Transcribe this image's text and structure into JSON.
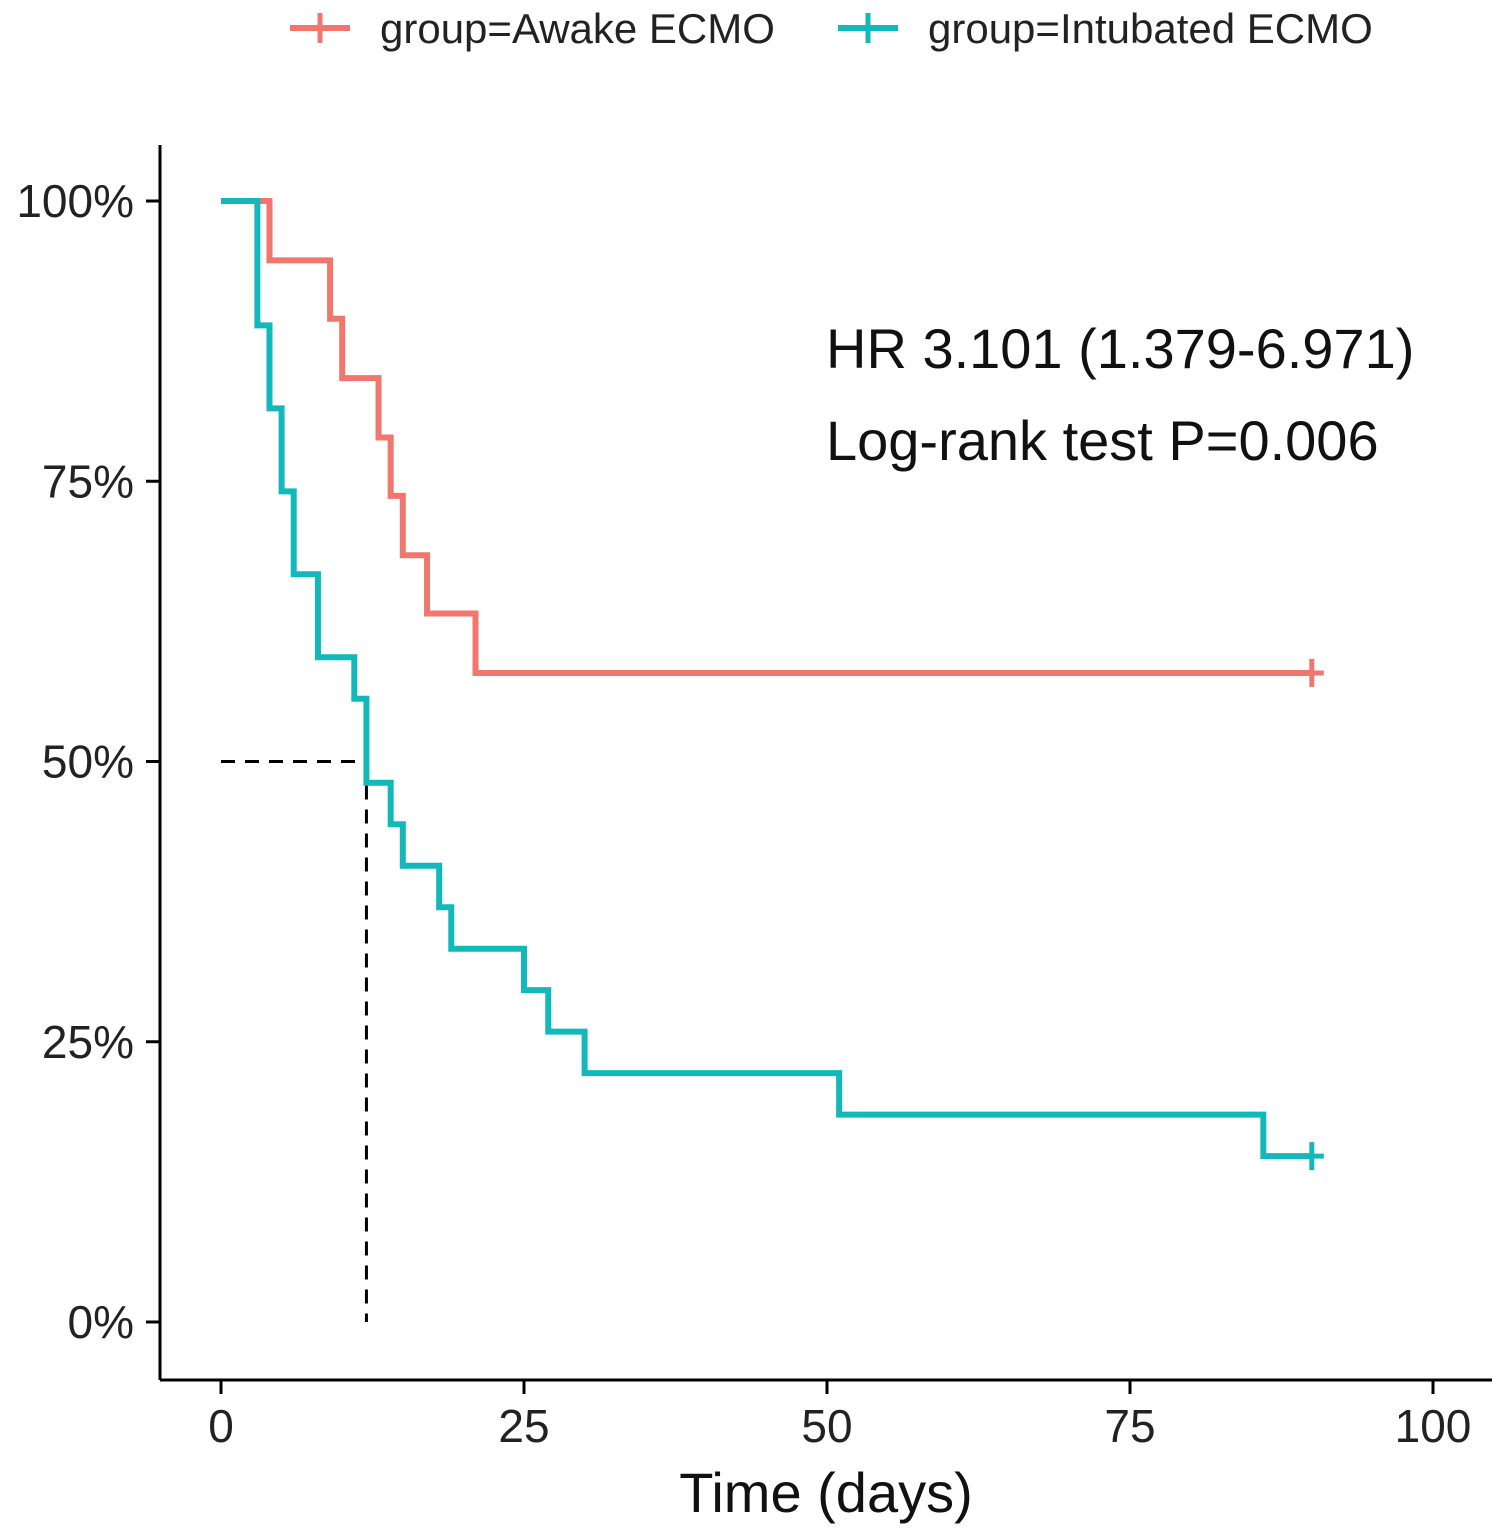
{
  "chart_data": {
    "type": "line",
    "subtype": "kaplan-meier step",
    "title": "",
    "xlabel": "Time (days)",
    "ylabel": "",
    "xlim": [
      0,
      100
    ],
    "ylim": [
      0,
      1
    ],
    "x_ticks": [
      0,
      25,
      50,
      75,
      100
    ],
    "x_tick_labels": [
      "0",
      "25",
      "50",
      "75",
      "100"
    ],
    "y_ticks": [
      0,
      0.25,
      0.5,
      0.75,
      1
    ],
    "y_tick_labels": [
      "0%",
      "25%",
      "50%",
      "75%",
      "100%"
    ],
    "grid": false,
    "legend": {
      "placement": "top",
      "entries": [
        "group=Awake ECMO",
        "group=Intubated ECMO"
      ]
    },
    "series": [
      {
        "name": "group=Awake ECMO",
        "color": "#F0766E",
        "steps": [
          [
            0,
            1.0
          ],
          [
            4,
            0.947
          ],
          [
            9,
            0.895
          ],
          [
            10,
            0.842
          ],
          [
            13,
            0.789
          ],
          [
            14,
            0.737
          ],
          [
            15,
            0.684
          ],
          [
            17,
            0.632
          ],
          [
            21,
            0.579
          ],
          [
            90,
            0.579
          ]
        ],
        "censored": [
          [
            90,
            0.579
          ]
        ]
      },
      {
        "name": "group=Intubated ECMO",
        "color": "#13B9BA",
        "steps": [
          [
            0,
            1.0
          ],
          [
            3,
            0.889
          ],
          [
            4,
            0.815
          ],
          [
            5,
            0.741
          ],
          [
            6,
            0.667
          ],
          [
            8,
            0.593
          ],
          [
            11,
            0.556
          ],
          [
            12,
            0.481
          ],
          [
            14,
            0.444
          ],
          [
            15,
            0.407
          ],
          [
            18,
            0.37
          ],
          [
            19,
            0.333
          ],
          [
            25,
            0.296
          ],
          [
            27,
            0.259
          ],
          [
            30,
            0.222
          ],
          [
            51,
            0.185
          ],
          [
            86,
            0.148
          ],
          [
            90,
            0.148
          ]
        ],
        "censored": [
          [
            90,
            0.148
          ]
        ]
      }
    ],
    "median_line": {
      "x": 12,
      "y": 0.5
    },
    "annotations": [
      "HR 3.101 (1.379-6.971)",
      "Log-rank test P=0.006"
    ]
  }
}
